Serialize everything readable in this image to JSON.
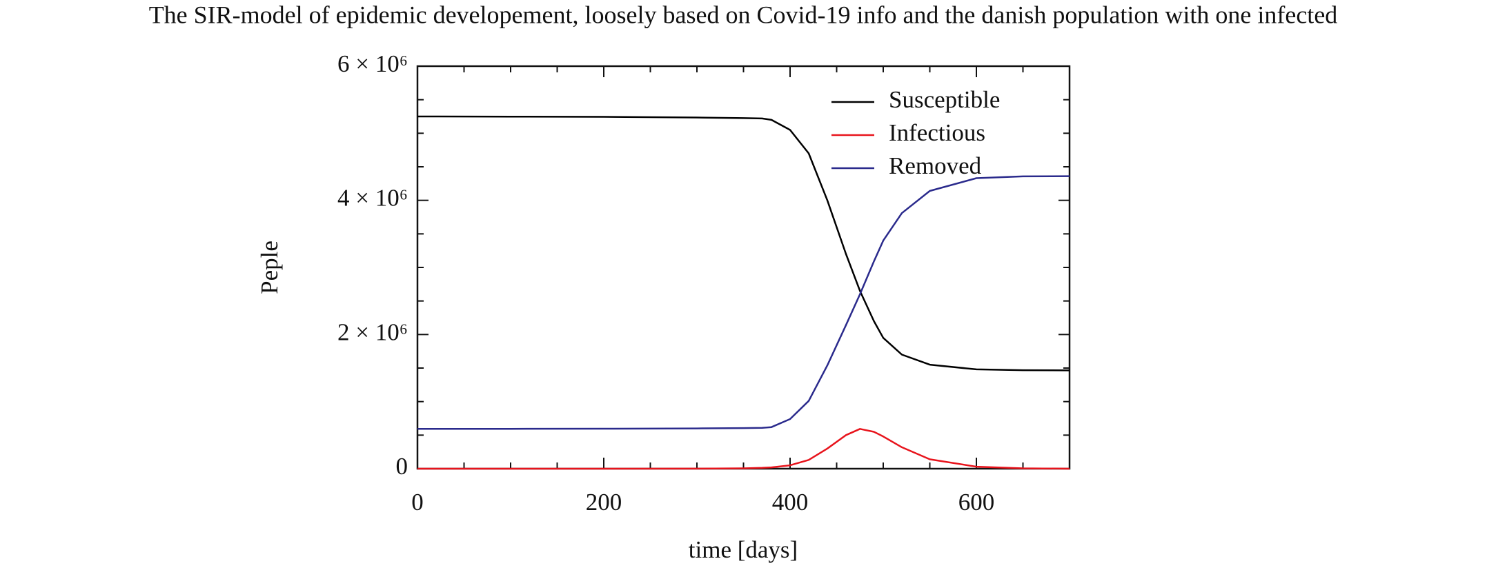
{
  "chart_data": {
    "type": "line",
    "title": "The SIR-model of epidemic developement, loosely based on Covid-19 info and the danish population with one infected",
    "x_label": "time [days]",
    "y_label": "Peple",
    "x": [
      0,
      100,
      200,
      300,
      350,
      370,
      380,
      400,
      420,
      440,
      460,
      475,
      490,
      500,
      520,
      550,
      600,
      650,
      700
    ],
    "series": [
      {
        "name": "Susceptible",
        "color": "#000000",
        "values": [
          5250000,
          5248000,
          5245000,
          5235000,
          5225000,
          5220000,
          5200000,
          5050000,
          4700000,
          4000000,
          3200000,
          2650000,
          2200000,
          1950000,
          1700000,
          1550000,
          1480000,
          1468000,
          1465000
        ]
      },
      {
        "name": "Infectious",
        "color": "#e8141c",
        "values": [
          0,
          0,
          0,
          1000,
          5000,
          12000,
          20000,
          50000,
          130000,
          300000,
          500000,
          593000,
          550000,
          480000,
          320000,
          140000,
          30000,
          5000,
          0
        ]
      },
      {
        "name": "Removed",
        "color": "#2a2a8c",
        "values": [
          593000,
          594000,
          596000,
          600000,
          605000,
          608000,
          620000,
          740000,
          1010000,
          1540000,
          2140000,
          2600000,
          3090000,
          3400000,
          3810000,
          4140000,
          4330000,
          4357000,
          4360000
        ]
      }
    ],
    "xlim": [
      0,
      700
    ],
    "ylim": [
      0,
      6000000
    ],
    "xticks": [
      0,
      200,
      400,
      600
    ],
    "yticks": [
      0,
      {
        "value": 2000000,
        "label": "2 × 10⁶"
      },
      {
        "value": 4000000,
        "label": "4 × 10⁶"
      },
      {
        "value": 6000000,
        "label": "6 × 10⁶"
      }
    ],
    "xminorticks": [
      50,
      100,
      150,
      250,
      300,
      350,
      450,
      500,
      550,
      650
    ],
    "yminorticks": [
      500000,
      1000000,
      1500000,
      2500000,
      3000000,
      3500000,
      4500000,
      5000000,
      5500000
    ],
    "legend": "upper right",
    "grid": false
  }
}
